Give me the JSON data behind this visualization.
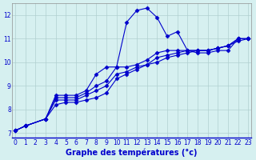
{
  "xlabel": "Graphe des températures (°c)",
  "background_color": "#d6f0f0",
  "grid_color": "#b0d0d0",
  "line_color": "#0000cc",
  "marker": "D",
  "markersize": 2.5,
  "xlim": [
    -0.3,
    23.3
  ],
  "ylim": [
    6.8,
    12.5
  ],
  "xticks": [
    0,
    1,
    2,
    3,
    4,
    5,
    6,
    7,
    8,
    9,
    10,
    11,
    12,
    13,
    14,
    15,
    16,
    17,
    18,
    19,
    20,
    21,
    22,
    23
  ],
  "yticks": [
    7,
    8,
    9,
    10,
    11,
    12
  ],
  "main_x": [
    0,
    1,
    3,
    4,
    5,
    6,
    7,
    8,
    9,
    10,
    11,
    12,
    13,
    14,
    15,
    16,
    17,
    18,
    19,
    20,
    21,
    22,
    23
  ],
  "main_y": [
    7.1,
    7.3,
    7.6,
    8.6,
    8.6,
    8.6,
    8.8,
    9.5,
    9.8,
    9.8,
    11.7,
    12.2,
    12.3,
    11.9,
    11.1,
    11.3,
    10.5,
    10.4,
    10.4,
    10.5,
    10.5,
    11.0,
    11.0
  ],
  "line2_x": [
    0,
    1,
    3,
    4,
    5,
    6,
    7,
    8,
    9,
    10,
    11,
    12,
    13,
    14,
    15,
    16,
    17,
    18,
    19,
    20,
    21,
    22,
    23
  ],
  "line2_y": [
    7.1,
    7.3,
    7.6,
    8.5,
    8.5,
    8.5,
    8.7,
    9.0,
    9.2,
    9.8,
    9.8,
    9.9,
    10.1,
    10.4,
    10.5,
    10.5,
    10.5,
    10.5,
    10.5,
    10.6,
    10.7,
    11.0,
    11.0
  ],
  "line3_x": [
    0,
    1,
    3,
    4,
    5,
    6,
    7,
    8,
    9,
    10,
    11,
    12,
    13,
    14,
    15,
    16,
    17,
    18,
    19,
    20,
    21,
    22,
    23
  ],
  "line3_y": [
    7.1,
    7.3,
    7.6,
    8.4,
    8.4,
    8.4,
    8.6,
    8.8,
    9.0,
    9.5,
    9.6,
    9.8,
    9.9,
    10.2,
    10.3,
    10.4,
    10.5,
    10.5,
    10.5,
    10.6,
    10.7,
    11.0,
    11.0
  ],
  "line4_x": [
    0,
    1,
    3,
    4,
    5,
    6,
    7,
    8,
    9,
    10,
    11,
    12,
    13,
    14,
    15,
    16,
    17,
    18,
    19,
    20,
    21,
    22,
    23
  ],
  "line4_y": [
    7.1,
    7.3,
    7.6,
    8.2,
    8.3,
    8.3,
    8.4,
    8.5,
    8.7,
    9.3,
    9.5,
    9.7,
    9.9,
    10.0,
    10.2,
    10.3,
    10.4,
    10.5,
    10.5,
    10.6,
    10.7,
    10.9,
    11.0
  ]
}
